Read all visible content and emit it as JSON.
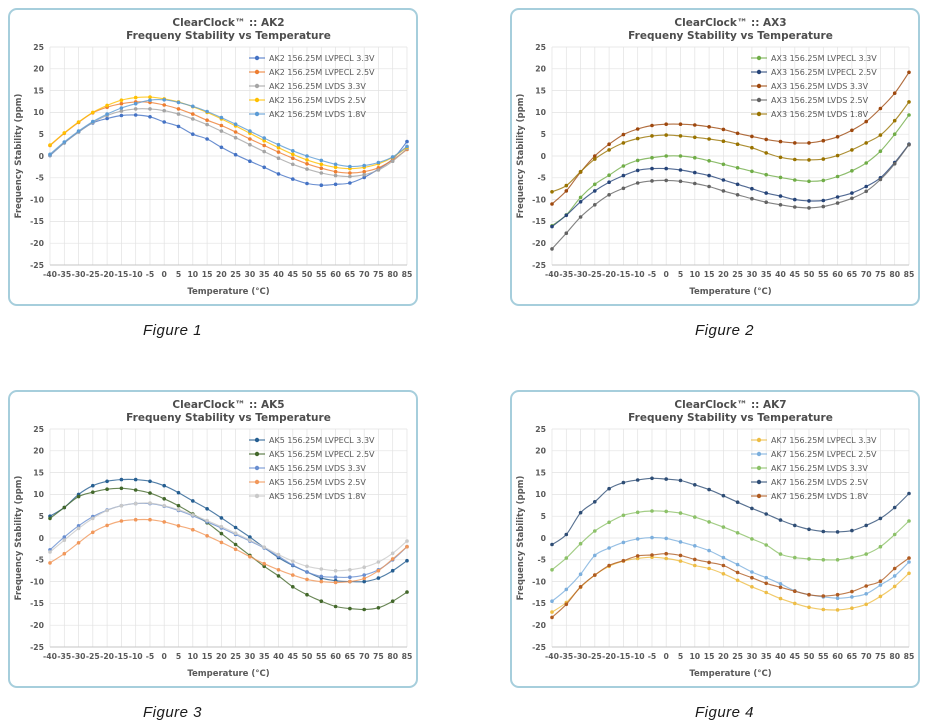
{
  "page": {
    "background": "#ffffff"
  },
  "panel": {
    "border_color": "#a6cedc",
    "background": "#ffffff"
  },
  "figures": [
    {
      "caption": "Figure 1"
    },
    {
      "caption": "Figure 2"
    },
    {
      "caption": "Figure 3"
    },
    {
      "caption": "Figure 4"
    }
  ],
  "chart_data": [
    {
      "type": "line",
      "title": "ClearClock™ :: AK2",
      "subtitle": "Frequeny Stability vs Temperature",
      "xlabel": "Temperature (°C)",
      "ylabel": "Frequency  Stability (ppm)",
      "x": [
        -40,
        -35,
        -30,
        -25,
        -20,
        -15,
        -10,
        -5,
        0,
        5,
        10,
        15,
        20,
        25,
        30,
        35,
        40,
        45,
        50,
        55,
        60,
        65,
        70,
        75,
        80,
        85
      ],
      "ylim": [
        -25,
        25
      ],
      "ytick_step": 5,
      "grid": true,
      "legend_position": "top-right-inside",
      "series": [
        {
          "name": "AK2 156.25M LVPECL 3.3V",
          "color": "#4472c4",
          "values": [
            0.1,
            3.0,
            5.5,
            7.6,
            8.6,
            9.3,
            9.4,
            9.0,
            7.8,
            6.8,
            5.0,
            3.9,
            2.0,
            0.3,
            -1.2,
            -2.6,
            -4.1,
            -5.3,
            -6.3,
            -6.7,
            -6.5,
            -6.2,
            -4.9,
            -3.0,
            -0.7,
            3.3
          ]
        },
        {
          "name": "AK2 156.25M LVPECL 2.5V",
          "color": "#ed7d31",
          "values": [
            2.4,
            5.2,
            7.7,
            9.9,
            11.2,
            12.0,
            12.4,
            12.3,
            11.7,
            10.8,
            9.6,
            8.2,
            7.0,
            5.5,
            3.9,
            2.4,
            0.9,
            -0.5,
            -1.8,
            -2.8,
            -3.6,
            -3.9,
            -3.6,
            -2.7,
            -0.9,
            1.5
          ]
        },
        {
          "name": "AK2 156.25M LVDS 3.3V",
          "color": "#a5a5a5",
          "values": [
            0.2,
            3.0,
            5.5,
            7.7,
            9.3,
            10.3,
            10.8,
            10.8,
            10.4,
            9.6,
            8.5,
            7.2,
            5.7,
            4.2,
            2.6,
            1.0,
            -0.5,
            -1.9,
            -3.0,
            -3.9,
            -4.5,
            -4.7,
            -4.3,
            -3.2,
            -1.2,
            1.7
          ]
        },
        {
          "name": "AK2 156.25M LVDS 2.5V",
          "color": "#ffc000",
          "values": [
            2.5,
            5.3,
            7.8,
            10.0,
            11.6,
            12.8,
            13.4,
            13.5,
            13.1,
            12.4,
            11.3,
            10.0,
            8.5,
            6.9,
            5.2,
            3.5,
            1.9,
            0.4,
            -0.9,
            -1.9,
            -2.6,
            -2.9,
            -2.6,
            -1.8,
            -0.3,
            2.0
          ]
        },
        {
          "name": "AK2 156.25M LVDS 1.8V",
          "color": "#5b9bd5",
          "values": [
            0.4,
            3.2,
            5.7,
            7.9,
            9.6,
            11.0,
            12.0,
            12.8,
            12.9,
            12.3,
            11.4,
            10.2,
            8.8,
            7.3,
            5.7,
            4.1,
            2.6,
            1.2,
            0.0,
            -1.0,
            -1.9,
            -2.4,
            -2.2,
            -1.5,
            -0.2,
            2.2
          ]
        }
      ]
    },
    {
      "type": "line",
      "title": "ClearClock™ :: AX3",
      "subtitle": "Frequeny Stability vs Temperature",
      "xlabel": "Temperature (°C)",
      "ylabel": "Frequency  Stability (ppm)",
      "x": [
        -40,
        -35,
        -30,
        -25,
        -20,
        -15,
        -10,
        -5,
        0,
        5,
        10,
        15,
        20,
        25,
        30,
        35,
        40,
        45,
        50,
        55,
        60,
        65,
        70,
        75,
        80,
        85
      ],
      "ylim": [
        -25,
        25
      ],
      "ytick_step": 5,
      "grid": true,
      "legend_position": "top-right-inside",
      "series": [
        {
          "name": "AX3 156.25M LVPECL 3.3V",
          "color": "#70ad47",
          "values": [
            -16.0,
            -13.5,
            -9.5,
            -6.5,
            -4.4,
            -2.3,
            -1.0,
            -0.4,
            0.0,
            0.0,
            -0.4,
            -1.1,
            -1.9,
            -2.7,
            -3.5,
            -4.3,
            -4.9,
            -5.5,
            -5.8,
            -5.6,
            -4.7,
            -3.4,
            -1.6,
            1.1,
            5.0,
            9.4
          ]
        },
        {
          "name": "AX3 156.25M LVPECL 2.5V",
          "color": "#264478",
          "values": [
            -16.2,
            -13.6,
            -10.5,
            -8.0,
            -6.0,
            -4.5,
            -3.3,
            -2.9,
            -2.9,
            -3.2,
            -3.8,
            -4.5,
            -5.5,
            -6.5,
            -7.5,
            -8.5,
            -9.2,
            -10.0,
            -10.3,
            -10.2,
            -9.4,
            -8.5,
            -7.0,
            -5.0,
            -1.5,
            2.7
          ]
        },
        {
          "name": "AX3 156.25M LVDS 3.3V",
          "color": "#9e480e",
          "values": [
            -11.0,
            -8.0,
            -3.7,
            0.0,
            2.7,
            4.9,
            6.2,
            7.0,
            7.3,
            7.3,
            7.1,
            6.7,
            6.1,
            5.2,
            4.5,
            3.8,
            3.3,
            3.0,
            3.0,
            3.5,
            4.4,
            5.9,
            7.9,
            10.9,
            14.4,
            19.2
          ]
        },
        {
          "name": "AX3 156.25M LVDS 2.5V",
          "color": "#636363",
          "values": [
            -21.3,
            -17.7,
            -14.0,
            -11.2,
            -8.9,
            -7.4,
            -6.2,
            -5.7,
            -5.6,
            -5.8,
            -6.3,
            -7.0,
            -8.0,
            -8.9,
            -9.8,
            -10.6,
            -11.2,
            -11.7,
            -11.9,
            -11.6,
            -10.8,
            -9.7,
            -8.1,
            -5.4,
            -1.8,
            2.6
          ]
        },
        {
          "name": "AX3 156.25M LVDS 1.8V",
          "color": "#997300",
          "values": [
            -8.2,
            -6.8,
            -3.6,
            -0.7,
            1.4,
            3.0,
            4.0,
            4.6,
            4.8,
            4.6,
            4.3,
            3.9,
            3.4,
            2.7,
            1.9,
            0.7,
            -0.3,
            -0.8,
            -0.9,
            -0.7,
            0.1,
            1.4,
            3.0,
            4.8,
            8.1,
            12.4
          ]
        }
      ]
    },
    {
      "type": "line",
      "title": "ClearClock™ :: AK5",
      "subtitle": "Frequeny Stability vs Temperature",
      "xlabel": "Temperature (°C)",
      "ylabel": "Frequency  Stability (ppm)",
      "x": [
        -40,
        -35,
        -30,
        -25,
        -20,
        -15,
        -10,
        -5,
        0,
        5,
        10,
        15,
        20,
        25,
        30,
        35,
        40,
        45,
        50,
        55,
        60,
        65,
        70,
        75,
        80,
        85
      ],
      "ylim": [
        -25,
        25
      ],
      "ytick_step": 5,
      "grid": true,
      "legend_position": "top-right-inside",
      "series": [
        {
          "name": "AK5 156.25M LVPECL 3.3V",
          "color": "#255e91",
          "values": [
            5.0,
            7.0,
            10.0,
            12.0,
            13.0,
            13.4,
            13.4,
            13.0,
            12.0,
            10.4,
            8.5,
            6.7,
            4.6,
            2.4,
            0.2,
            -2.2,
            -4.5,
            -6.3,
            -7.8,
            -9.2,
            -9.8,
            -10.0,
            -10.0,
            -9.2,
            -7.5,
            -5.2
          ]
        },
        {
          "name": "AK5 156.25M LVPECL 2.5V",
          "color": "#43682b",
          "values": [
            4.5,
            7.0,
            9.5,
            10.5,
            11.2,
            11.4,
            11.0,
            10.3,
            9.0,
            7.4,
            5.5,
            3.5,
            1.0,
            -1.5,
            -4.0,
            -6.5,
            -8.7,
            -11.2,
            -13.0,
            -14.5,
            -15.7,
            -16.2,
            -16.4,
            -16.0,
            -14.5,
            -12.4
          ]
        },
        {
          "name": "AK5 156.25M LVDS 3.3V",
          "color": "#698ed0",
          "values": [
            -2.7,
            0.2,
            2.8,
            4.9,
            6.4,
            7.4,
            7.9,
            7.9,
            7.3,
            6.3,
            5.1,
            3.7,
            2.3,
            0.8,
            -0.7,
            -2.3,
            -4.2,
            -6.2,
            -7.8,
            -8.8,
            -9.0,
            -9.0,
            -8.5,
            -7.3,
            -5.0,
            -2.0
          ]
        },
        {
          "name": "AK5 156.25M LVDS 2.5V",
          "color": "#f1975a",
          "values": [
            -5.7,
            -3.6,
            -1.1,
            1.3,
            2.9,
            3.9,
            4.2,
            4.2,
            3.7,
            2.8,
            1.9,
            0.5,
            -1.0,
            -2.6,
            -4.3,
            -5.9,
            -7.3,
            -8.5,
            -9.5,
            -10.0,
            -10.2,
            -10.0,
            -9.3,
            -7.5,
            -4.8,
            -2.0
          ]
        },
        {
          "name": "AK5 156.25M LVDS 1.8V",
          "color": "#c9c9c9",
          "values": [
            -3.2,
            -0.5,
            2.2,
            4.5,
            6.3,
            7.4,
            7.9,
            8.0,
            7.4,
            6.5,
            5.3,
            4.0,
            2.6,
            1.1,
            -0.5,
            -2.1,
            -3.8,
            -5.3,
            -6.5,
            -7.1,
            -7.5,
            -7.3,
            -6.7,
            -5.5,
            -3.5,
            -0.7
          ]
        }
      ]
    },
    {
      "type": "line",
      "title": "ClearClock™ :: AK7",
      "subtitle": "Frequeny Stability vs Temperature",
      "xlabel": "Temperature (°C)",
      "ylabel": "Frequency  Stability (ppm)",
      "x": [
        -40,
        -35,
        -30,
        -25,
        -20,
        -15,
        -10,
        -5,
        0,
        5,
        10,
        15,
        20,
        25,
        30,
        35,
        40,
        45,
        50,
        55,
        60,
        65,
        70,
        75,
        80,
        85
      ],
      "ylim": [
        -25,
        25
      ],
      "ytick_step": 5,
      "grid": true,
      "legend_position": "top-right-inside",
      "series": [
        {
          "name": "AK7 156.25M LVPECL 3.3V",
          "color": "#edbd45",
          "values": [
            -17.0,
            -14.8,
            -11.3,
            -8.5,
            -6.5,
            -5.3,
            -4.7,
            -4.4,
            -4.7,
            -5.3,
            -6.3,
            -7.0,
            -8.2,
            -9.7,
            -11.2,
            -12.5,
            -13.9,
            -15.0,
            -15.9,
            -16.4,
            -16.5,
            -16.1,
            -15.2,
            -13.4,
            -11.1,
            -8.1
          ]
        },
        {
          "name": "AK7 156.25M LVPECL 2.5V",
          "color": "#7cafdd",
          "values": [
            -14.5,
            -11.8,
            -8.3,
            -4.0,
            -2.3,
            -1.0,
            -0.2,
            0.1,
            -0.1,
            -0.9,
            -1.8,
            -2.9,
            -4.5,
            -6.1,
            -7.8,
            -9.1,
            -10.5,
            -12.1,
            -13.0,
            -13.5,
            -13.8,
            -13.5,
            -12.8,
            -10.8,
            -8.7,
            -5.5
          ]
        },
        {
          "name": "AK7 156.25M LVDS 3.3V",
          "color": "#8cc168",
          "values": [
            -7.3,
            -4.6,
            -1.3,
            1.6,
            3.6,
            5.2,
            5.9,
            6.2,
            6.1,
            5.7,
            4.8,
            3.7,
            2.5,
            1.2,
            -0.2,
            -1.6,
            -3.7,
            -4.5,
            -4.8,
            -5.0,
            -5.0,
            -4.5,
            -3.7,
            -2.0,
            0.8,
            3.9
          ]
        },
        {
          "name": "AK7 156.25M LVDS 2.5V",
          "color": "#2e4d75",
          "values": [
            -1.5,
            0.8,
            5.8,
            8.3,
            11.3,
            12.7,
            13.3,
            13.7,
            13.5,
            13.2,
            12.2,
            11.1,
            9.7,
            8.2,
            6.8,
            5.5,
            4.1,
            2.9,
            2.0,
            1.5,
            1.4,
            1.7,
            2.9,
            4.5,
            7.0,
            10.2
          ]
        },
        {
          "name": "AK7 156.25M LVDS 1.8V",
          "color": "#af5b21",
          "values": [
            -18.2,
            -15.2,
            -11.2,
            -8.5,
            -6.3,
            -5.2,
            -4.1,
            -3.9,
            -3.6,
            -4.0,
            -4.9,
            -5.6,
            -6.3,
            -7.9,
            -9.1,
            -10.4,
            -11.3,
            -12.2,
            -13.0,
            -13.3,
            -13.0,
            -12.3,
            -11.0,
            -9.9,
            -7.0,
            -4.6
          ]
        }
      ]
    }
  ]
}
